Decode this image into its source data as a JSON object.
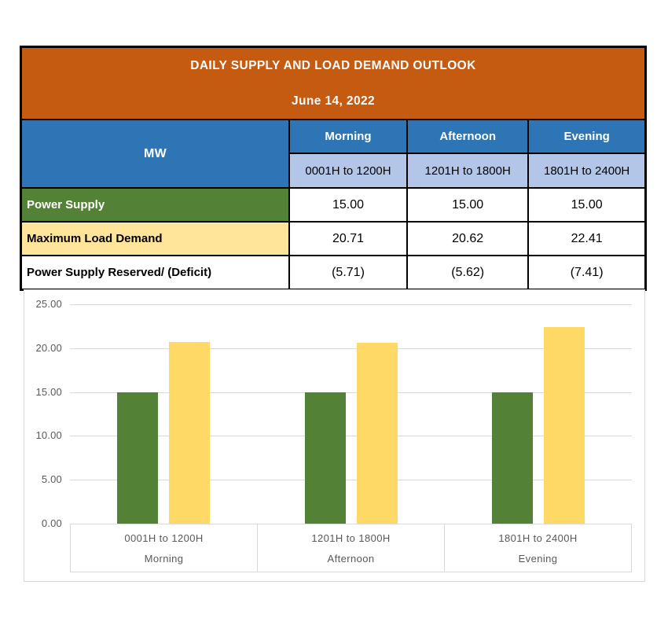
{
  "table": {
    "title": "DAILY SUPPLY AND LOAD DEMAND OUTLOOK",
    "date": "June 14, 2022",
    "unit_label": "MW",
    "columns": [
      {
        "period": "Morning",
        "hours": "0001H to 1200H"
      },
      {
        "period": "Afternoon",
        "hours": "1201H to 1800H"
      },
      {
        "period": "Evening",
        "hours": "1801H to 2400H"
      }
    ],
    "rows": [
      {
        "label": "Power Supply",
        "values": [
          "15.00",
          "15.00",
          "15.00"
        ]
      },
      {
        "label": "Maximum Load Demand",
        "values": [
          "20.71",
          "20.62",
          "22.41"
        ]
      },
      {
        "label": "Power Supply Reserved/ (Deficit)",
        "values": [
          "(5.71)",
          "(5.62)",
          "(7.41)"
        ]
      }
    ]
  },
  "colors": {
    "header_orange": "#C55A11",
    "header_blue": "#2E75B6",
    "subheader_light_blue": "#B4C6E7",
    "supply_green": "#538135",
    "demand_yellow_row": "#FFE599",
    "demand_yellow_bar": "#FFD966",
    "gridline_gray": "#D9D9D9",
    "chart_text_gray": "#595959",
    "border_black": "#000000"
  },
  "chart_data": {
    "type": "bar",
    "categories": [
      {
        "hours": "0001H to 1200H",
        "period": "Morning"
      },
      {
        "hours": "1201H to 1800H",
        "period": "Afternoon"
      },
      {
        "hours": "1801H to 2400H",
        "period": "Evening"
      }
    ],
    "series": [
      {
        "name": "Power Supply",
        "color": "#538135",
        "values": [
          15.0,
          15.0,
          15.0
        ]
      },
      {
        "name": "Maximum Load Demand",
        "color": "#FFD966",
        "values": [
          20.71,
          20.62,
          22.41
        ]
      }
    ],
    "title": "",
    "xlabel": "",
    "ylabel": "",
    "ylim": [
      0,
      25
    ],
    "ytick_step": 5,
    "ytick_labels": [
      "0.00",
      "5.00",
      "10.00",
      "15.00",
      "20.00",
      "25.00"
    ],
    "grid": true,
    "legend_position": "none"
  }
}
